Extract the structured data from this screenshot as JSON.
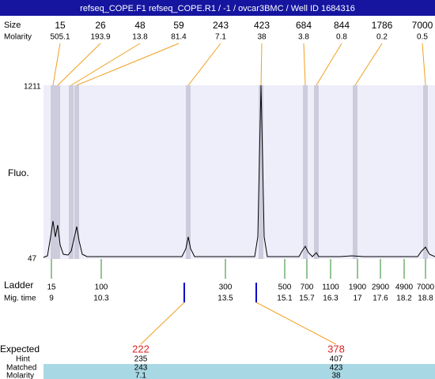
{
  "header": {
    "title": "refseq_COPE.F1  refseq_COPE.R1 / -1 / ovcar3BMC / Well ID 1684316"
  },
  "labels": {
    "size": "Size",
    "molarity": "Molarity",
    "fluo": "Fluo.",
    "y_top": "1211",
    "y_bottom": "47",
    "ladder": "Ladder",
    "mig_time": "Mig. time",
    "expected": "Expected",
    "hint": "Hint",
    "matched": "Matched",
    "molarity_bottom": "Molarity"
  },
  "peaks": [
    {
      "size": 15,
      "molarity": 505.1
    },
    {
      "size": 26,
      "molarity": 193.9
    },
    {
      "size": 48,
      "molarity": 13.8
    },
    {
      "size": 59,
      "molarity": 81.4
    },
    {
      "size": 243,
      "molarity": 7.1
    },
    {
      "size": 423,
      "molarity": 38
    },
    {
      "size": 684,
      "molarity": 3.8
    },
    {
      "size": 844,
      "molarity": 0.8
    },
    {
      "size": 1786,
      "molarity": 0.2
    },
    {
      "size": 7000,
      "molarity": 0.5
    }
  ],
  "ladder": [
    {
      "size": 15,
      "time": 9
    },
    {
      "size": 100,
      "time": 10.3
    },
    {
      "size": 300,
      "time": 13.5
    },
    {
      "size": 500,
      "time": 15.1
    },
    {
      "size": 700,
      "time": 15.7
    },
    {
      "size": 1100,
      "time": 16.3
    },
    {
      "size": 1900,
      "time": 17
    },
    {
      "size": 2900,
      "time": 17.6
    },
    {
      "size": 4900,
      "time": 18.2
    },
    {
      "size": 7000,
      "time": 18.8
    }
  ],
  "expected": [
    {
      "expected": 222,
      "hint": 235,
      "matched": 243,
      "molarity": 7.1
    },
    {
      "expected": 378,
      "hint": 407,
      "matched": 423,
      "molarity": 38
    }
  ]
}
